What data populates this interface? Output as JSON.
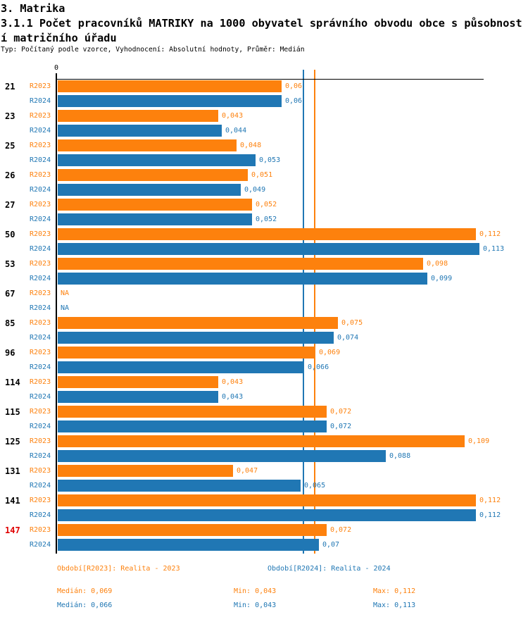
{
  "header": {
    "title": "3. Matrika",
    "subtitle_line1": "3.1.1 Počet pracovníků MATRIKY na 1000 obyvatel správního obvodu obce s působnost",
    "subtitle_line2": "í matričního úřadu",
    "meta": "Typ: Počítaný podle vzorce, Vyhodnocení: Absolutní hodnoty, Průměr: Medián"
  },
  "colors": {
    "r2023": "#fd810d",
    "r2024": "#2077b4",
    "highlight_category": "#e00000",
    "category": "#000000",
    "axis": "#000000"
  },
  "chart_data": {
    "type": "bar",
    "orientation": "horizontal",
    "axis_zero_label": "0",
    "na_label": "NA",
    "categories": [
      "21",
      "23",
      "25",
      "26",
      "27",
      "50",
      "53",
      "67",
      "85",
      "96",
      "114",
      "115",
      "125",
      "131",
      "141",
      "147"
    ],
    "highlighted_categories": [
      "147"
    ],
    "series": [
      {
        "name": "R2023",
        "values": [
          0.06,
          0.043,
          0.048,
          0.051,
          0.052,
          0.112,
          0.098,
          null,
          0.075,
          0.069,
          0.043,
          0.072,
          0.109,
          0.047,
          0.112,
          0.072
        ],
        "labels": [
          "0,06",
          "0,043",
          "0,048",
          "0,051",
          "0,052",
          "0,112",
          "0,098",
          "NA",
          "0,075",
          "0,069",
          "0,043",
          "0,072",
          "0,109",
          "0,047",
          "0,112",
          "0,072"
        ]
      },
      {
        "name": "R2024",
        "values": [
          0.06,
          0.044,
          0.053,
          0.049,
          0.052,
          0.113,
          0.099,
          null,
          0.074,
          0.066,
          0.043,
          0.072,
          0.088,
          0.065,
          0.112,
          0.07
        ],
        "labels": [
          "0,06",
          "0,044",
          "0,053",
          "0,049",
          "0,052",
          "0,113",
          "0,099",
          "NA",
          "0,074",
          "0,066",
          "0,043",
          "0,072",
          "0,088",
          "0,065",
          "0,112",
          "0,07"
        ]
      }
    ],
    "reference_lines": [
      {
        "name": "median-2023",
        "value": 0.069,
        "color": "#fd810d"
      },
      {
        "name": "median-2024",
        "value": 0.066,
        "color": "#2077b4"
      }
    ],
    "xlim": [
      0,
      0.1143
    ],
    "grid": false,
    "legend_position": "bottom"
  },
  "footer": {
    "legend_2023": "Období[R2023]: Realita - 2023",
    "legend_2024": "Období[R2024]: Realita - 2024",
    "stats_2023": {
      "median": "Medián: 0,069",
      "min": "Min: 0,043",
      "max": "Max: 0,112"
    },
    "stats_2024": {
      "median": "Medián: 0,066",
      "min": "Min: 0,043",
      "max": "Max: 0,113"
    }
  }
}
